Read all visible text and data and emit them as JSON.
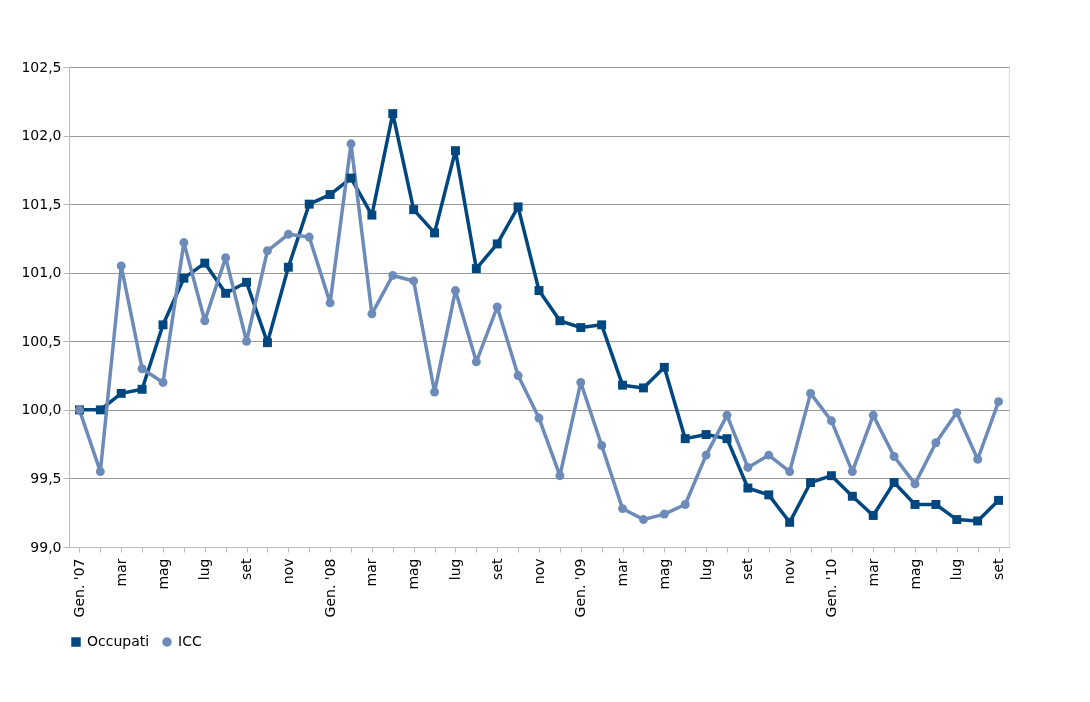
{
  "chart_data": {
    "type": "line",
    "categories": [
      "Gen. '07",
      null,
      "mar",
      null,
      "mag",
      null,
      "lug",
      null,
      "set",
      null,
      "nov",
      null,
      "Gen. '08",
      null,
      "mar",
      null,
      "mag",
      null,
      "lug",
      null,
      "set",
      null,
      "nov",
      null,
      "Gen. '09",
      null,
      "mar",
      null,
      "mag",
      null,
      "lug",
      null,
      "set",
      null,
      "nov",
      null,
      "Gen. '10",
      null,
      "mar",
      null,
      "mag",
      null,
      "lug",
      null,
      "set"
    ],
    "series": [
      {
        "name": "Occupati",
        "color": "#00477f",
        "marker": "square",
        "values": [
          100.0,
          100.0,
          100.12,
          100.15,
          100.62,
          100.96,
          101.07,
          100.85,
          100.93,
          100.49,
          101.04,
          101.5,
          101.57,
          101.69,
          101.42,
          102.16,
          101.46,
          101.29,
          101.89,
          101.03,
          101.21,
          101.48,
          100.87,
          100.65,
          100.6,
          100.62,
          100.18,
          100.16,
          100.31,
          99.79,
          99.82,
          99.79,
          99.43,
          99.38,
          99.18,
          99.47,
          99.52,
          99.37,
          99.23,
          99.47,
          99.31,
          99.31,
          99.2,
          99.19,
          99.34
        ]
      },
      {
        "name": "ICC",
        "color": "#6d8bb8",
        "marker": "circle",
        "values": [
          100.0,
          99.55,
          101.05,
          100.3,
          100.2,
          101.22,
          100.65,
          101.11,
          100.5,
          101.16,
          101.28,
          101.26,
          100.78,
          101.94,
          100.7,
          100.98,
          100.94,
          100.13,
          100.87,
          100.35,
          100.75,
          100.25,
          99.94,
          99.52,
          100.2,
          99.74,
          99.28,
          99.2,
          99.24,
          99.31,
          99.67,
          99.96,
          99.58,
          99.67,
          99.55,
          100.12,
          99.92,
          99.55,
          99.96,
          99.66,
          99.46,
          99.76,
          99.98,
          99.64,
          100.06
        ]
      }
    ],
    "ylim": [
      99.0,
      102.5
    ],
    "yticks": [
      {
        "value": 99.0,
        "label": "99,0"
      },
      {
        "value": 99.5,
        "label": "99,5"
      },
      {
        "value": 100.0,
        "label": "100,0"
      },
      {
        "value": 100.5,
        "label": "100,5"
      },
      {
        "value": 101.0,
        "label": "101,0"
      },
      {
        "value": 101.5,
        "label": "101,5"
      },
      {
        "value": 102.0,
        "label": "102,0"
      },
      {
        "value": 102.5,
        "label": "102,5"
      }
    ],
    "grid": "y",
    "legend": "bottom",
    "line_style": "solid"
  }
}
